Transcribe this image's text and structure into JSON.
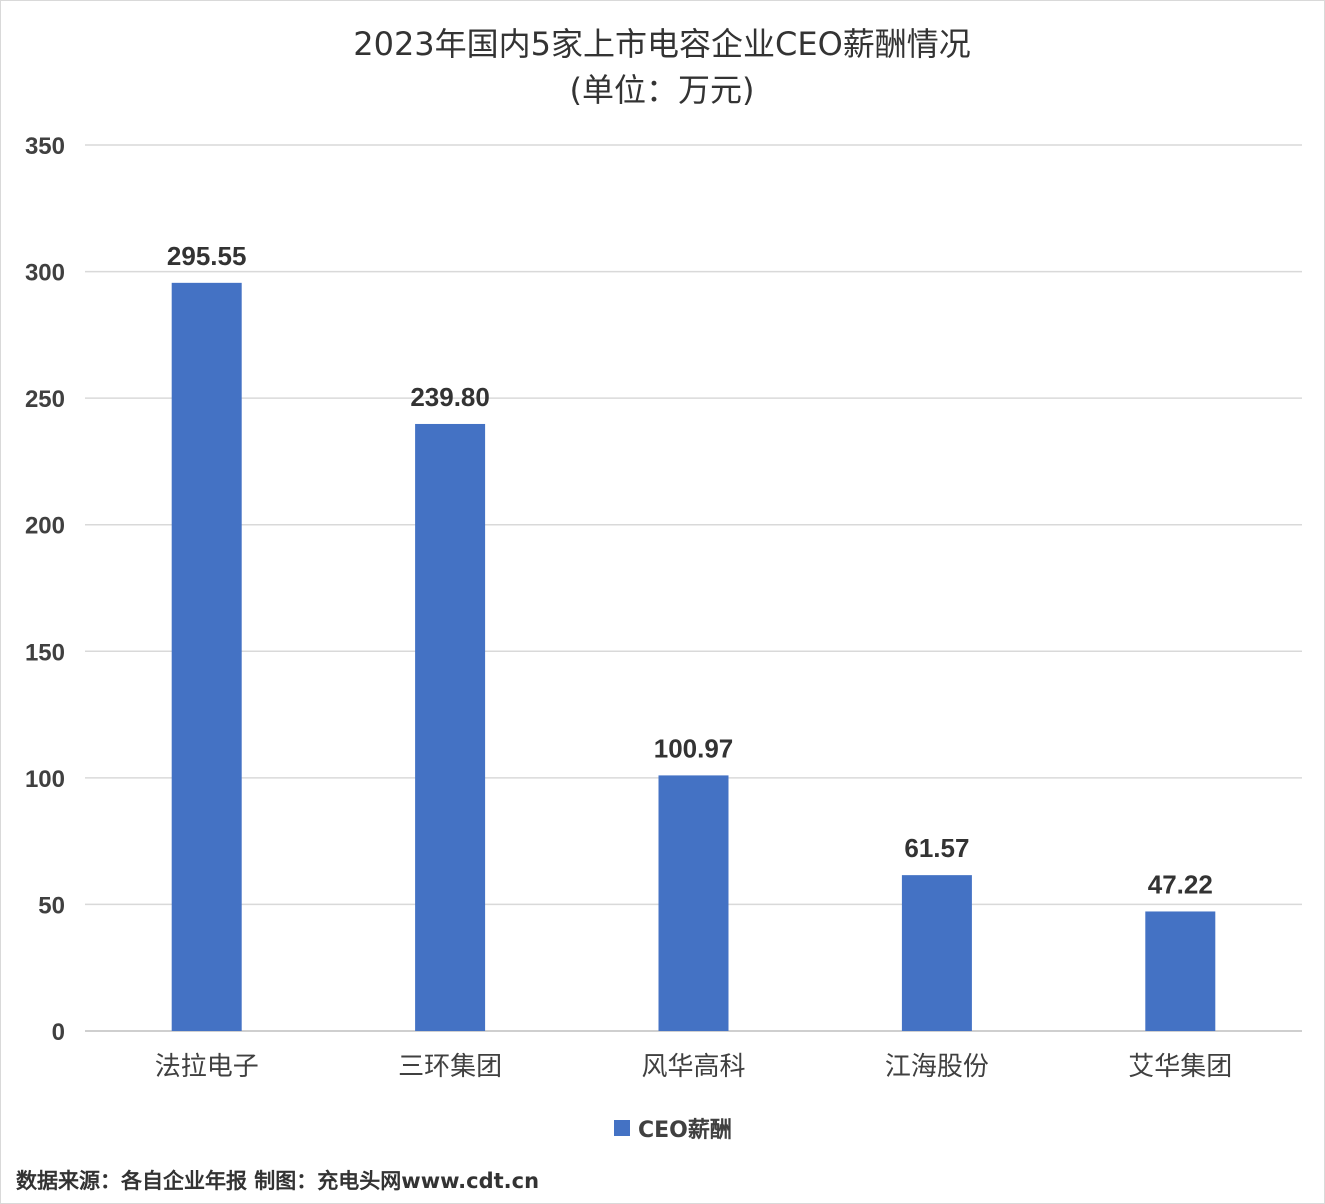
{
  "chart_data": {
    "type": "bar",
    "title": "2023年国内5家上市电容企业CEO薪酬情况",
    "subtitle": "(单位：万元)",
    "categories": [
      "法拉电子",
      "三环集团",
      "风华高科",
      "江海股份",
      "艾华集团"
    ],
    "series": [
      {
        "name": "CEO薪酬",
        "values": [
          295.55,
          239.8,
          100.97,
          61.57,
          47.22
        ],
        "value_labels": [
          "295.55",
          "239.80",
          "100.97",
          "61.57",
          "47.22"
        ],
        "color": "#4472C4"
      }
    ],
    "ylim": [
      0,
      350
    ],
    "yticks": [
      0,
      50,
      100,
      150,
      200,
      250,
      300,
      350
    ],
    "grid": true,
    "legend_position": "bottom",
    "xlabel": "",
    "ylabel": ""
  },
  "source_note": "数据来源：各自企业年报  制图：充电头网www.cdt.cn"
}
